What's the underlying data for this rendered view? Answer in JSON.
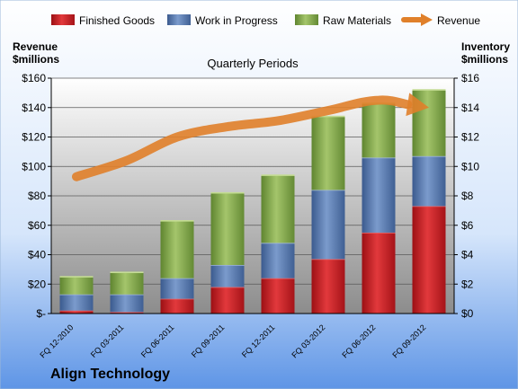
{
  "chart_data": {
    "type": "bar",
    "title": "Quarterly Periods",
    "company": "Align Technology",
    "left_axis_label": [
      "Revenue",
      "$millions"
    ],
    "right_axis_label": [
      "Inventory",
      "$millions"
    ],
    "left_axis": {
      "ylim": [
        0,
        160
      ],
      "ticks": [
        "$-",
        "$20",
        "$40",
        "$60",
        "$80",
        "$100",
        "$120",
        "$140",
        "$160"
      ]
    },
    "right_axis": {
      "ylim": [
        0,
        16
      ],
      "ticks": [
        "$0",
        "$2",
        "$4",
        "$6",
        "$8",
        "$10",
        "$12",
        "$14",
        "$16"
      ]
    },
    "categories": [
      "FQ 12-2010",
      "FQ 03-2011",
      "FQ 06-2011",
      "FQ 09-2011",
      "FQ 12-2011",
      "FQ 03-2012",
      "FQ 06-2012",
      "FQ 09-2012"
    ],
    "legend_position": "top",
    "stack_axis": "right",
    "series": [
      {
        "name": "Finished Goods",
        "type": "stacked-bar",
        "axis": "right",
        "color": "#c0181c",
        "values": [
          0.2,
          0.1,
          1.0,
          1.8,
          2.4,
          3.7,
          5.5,
          7.3
        ]
      },
      {
        "name": "Work in Progress",
        "type": "stacked-bar",
        "axis": "right",
        "color": "#4a6ea8",
        "values": [
          1.1,
          1.2,
          1.4,
          1.5,
          2.4,
          4.7,
          5.1,
          3.4
        ]
      },
      {
        "name": "Raw Materials",
        "type": "stacked-bar",
        "axis": "right",
        "color": "#7fa543",
        "values": [
          1.2,
          1.5,
          3.9,
          4.9,
          4.6,
          5.0,
          3.7,
          4.5
        ]
      },
      {
        "name": "Revenue",
        "type": "line-arrow",
        "axis": "left",
        "color": "#e0802a",
        "values": [
          93,
          104,
          120,
          127,
          131,
          138,
          145,
          140
        ]
      }
    ]
  }
}
